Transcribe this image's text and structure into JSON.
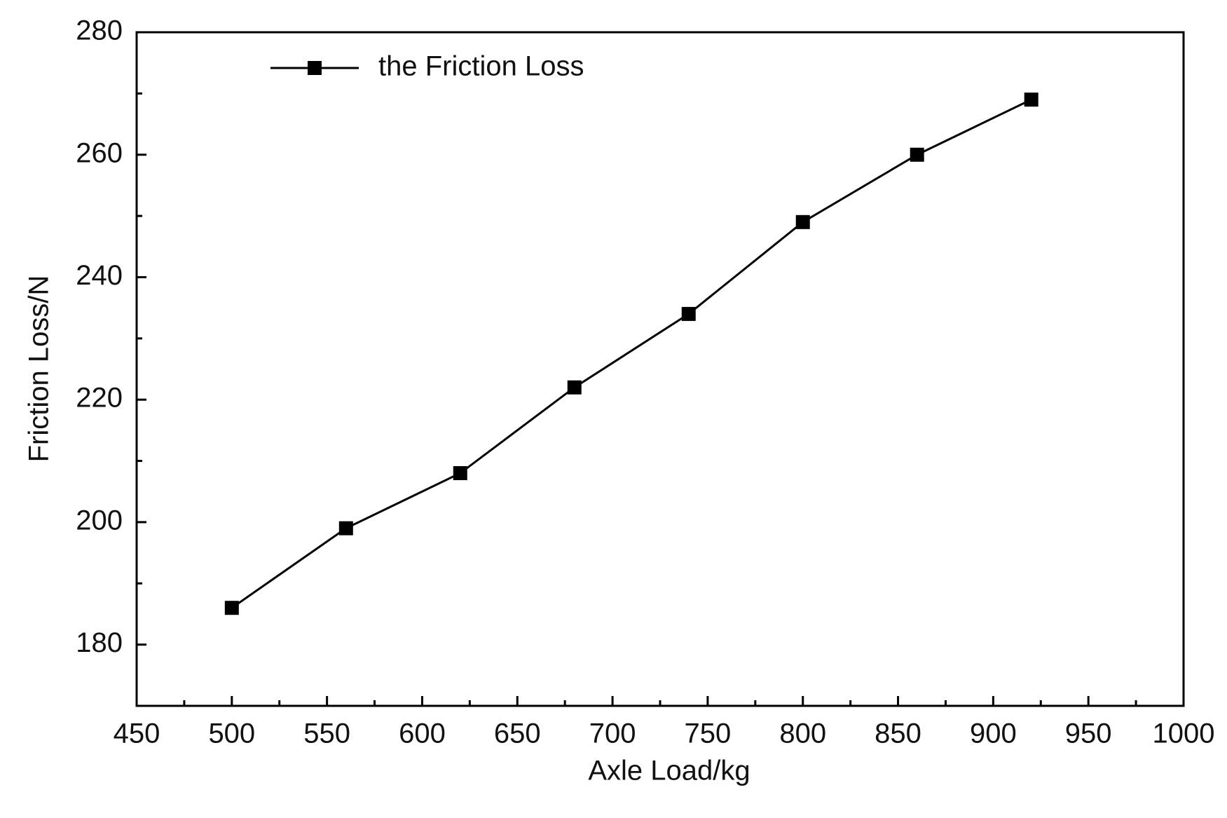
{
  "chart_data": {
    "type": "line",
    "x_label": "Axle Load/kg",
    "y_label": "Friction Loss/N",
    "x": [
      500,
      560,
      620,
      680,
      740,
      800,
      860,
      920
    ],
    "series": [
      {
        "name": "the Friction Loss",
        "color": "#000000",
        "values": [
          186,
          199,
          208,
          222,
          234,
          249,
          260,
          269
        ]
      }
    ],
    "xlim": [
      450,
      1000
    ],
    "xticks": [
      450,
      500,
      550,
      600,
      650,
      700,
      750,
      800,
      850,
      900,
      950,
      1000
    ],
    "ylim": [
      170,
      280
    ],
    "yticks": [
      180,
      200,
      220,
      240,
      260,
      280
    ],
    "grid": false,
    "legend": "upper left"
  }
}
